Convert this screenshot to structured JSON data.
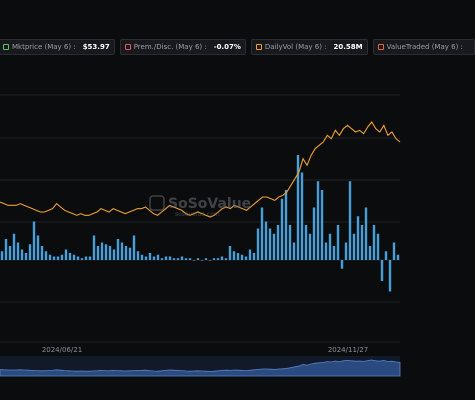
{
  "legend": [
    {
      "label": "Mktprice (May 6) :",
      "value": "$53.97",
      "color": "#5fbf6e"
    },
    {
      "label": "Prem./Disc. (May 6) :",
      "value": "-0.07%",
      "color": "#e0556a"
    },
    {
      "label": "DailyVol (May 6) :",
      "value": "20.58M",
      "color": "#f0a030"
    },
    {
      "label": "ValueTraded (May 6) :",
      "value": "",
      "color": "#e06a40"
    }
  ],
  "watermark": {
    "name": "SoSoValue",
    "sub": "sosovalue.com"
  },
  "chart_data": {
    "type": "bar",
    "x_ticks": [
      "2024/06/21",
      "2024/11/27"
    ],
    "line_color": "#f0a030",
    "bar_color": "#4a9fd8",
    "line_values": [
      52,
      51,
      50,
      50,
      50,
      51,
      50,
      49,
      48,
      47,
      46,
      46,
      47,
      48,
      51,
      49,
      47,
      46,
      45,
      44,
      45,
      44,
      44,
      45,
      46,
      48,
      47,
      46,
      48,
      47,
      46,
      45,
      46,
      47,
      48,
      48,
      49,
      47,
      45,
      44,
      46,
      48,
      50,
      49,
      48,
      47,
      45,
      44,
      45,
      46,
      45,
      44,
      43,
      44,
      46,
      48,
      49,
      48,
      50,
      49,
      48,
      47,
      49,
      51,
      53,
      55,
      55,
      54,
      53,
      55,
      56,
      58,
      62,
      66,
      70,
      78,
      74,
      80,
      84,
      86,
      88,
      92,
      90,
      95,
      92,
      96,
      98,
      96,
      94,
      95,
      93,
      97,
      100,
      96,
      94,
      98,
      92,
      94,
      90,
      88
    ],
    "bar_values": [
      5,
      12,
      8,
      15,
      10,
      6,
      4,
      9,
      22,
      14,
      8,
      5,
      3,
      2,
      2,
      3,
      6,
      4,
      3,
      2,
      1,
      2,
      2,
      14,
      8,
      10,
      9,
      8,
      6,
      12,
      10,
      8,
      7,
      14,
      5,
      3,
      2,
      4,
      2,
      3,
      1,
      2,
      2,
      1,
      1,
      2,
      1,
      1,
      0,
      1,
      0,
      1,
      0,
      1,
      1,
      2,
      1,
      8,
      5,
      4,
      3,
      2,
      6,
      4,
      18,
      30,
      22,
      18,
      15,
      20,
      35,
      40,
      20,
      10,
      60,
      50,
      20,
      15,
      30,
      45,
      40,
      10,
      15,
      8,
      20,
      -5,
      10,
      45,
      15,
      25,
      20,
      30,
      8,
      20,
      15,
      -12,
      5,
      -18,
      10,
      3
    ]
  }
}
